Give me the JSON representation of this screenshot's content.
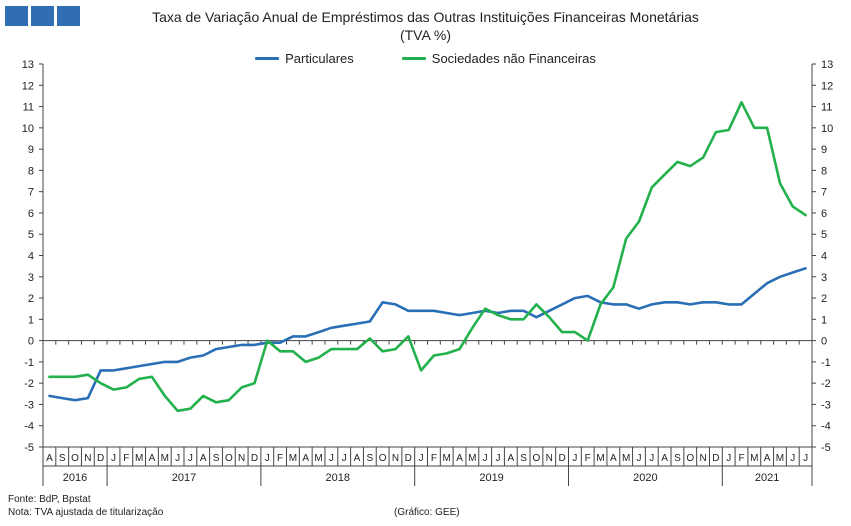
{
  "logo": {
    "icon": "institution-logo-icon",
    "color": "#2f6eb5"
  },
  "title": {
    "line1": "Taxa de Variação Anual de Empréstimos das Outras Instituições Financeiras Monetárias",
    "line2": "(TVA %)"
  },
  "legend": [
    {
      "label": "Particulares",
      "color": "#2a6fb5"
    },
    {
      "label": "Sociedades não Financeiras",
      "color": "#22b14c"
    }
  ],
  "footer": {
    "source": "Fonte: BdP, Bpstat",
    "note": "Nota: TVA ajustada de titularização",
    "credit": "(Gráfico: GEE)"
  },
  "chart_data": {
    "type": "line",
    "title": "Taxa de Variação Anual de Empréstimos das Outras Instituições Financeiras Monetárias (TVA %)",
    "ylim": [
      -5,
      13
    ],
    "yticks": [
      -5,
      -4,
      -3,
      -2,
      -1,
      0,
      1,
      2,
      3,
      4,
      5,
      6,
      7,
      8,
      9,
      10,
      11,
      12,
      13
    ],
    "x": [
      "A",
      "S",
      "O",
      "N",
      "D",
      "J",
      "F",
      "M",
      "A",
      "M",
      "J",
      "J",
      "A",
      "S",
      "O",
      "N",
      "D",
      "J",
      "F",
      "M",
      "A",
      "M",
      "J",
      "J",
      "A",
      "S",
      "O",
      "N",
      "D",
      "J",
      "F",
      "M",
      "A",
      "M",
      "J",
      "J",
      "A",
      "S",
      "O",
      "N",
      "D",
      "J",
      "F",
      "M",
      "A",
      "M",
      "J",
      "J",
      "A",
      "S",
      "O",
      "N",
      "D",
      "J",
      "F",
      "M",
      "A",
      "M",
      "J",
      "J"
    ],
    "years": [
      {
        "label": "2016",
        "start": 0,
        "count": 5
      },
      {
        "label": "2017",
        "start": 5,
        "count": 12
      },
      {
        "label": "2018",
        "start": 17,
        "count": 12
      },
      {
        "label": "2019",
        "start": 29,
        "count": 12
      },
      {
        "label": "2020",
        "start": 41,
        "count": 12
      },
      {
        "label": "2021",
        "start": 53,
        "count": 7
      }
    ],
    "series": [
      {
        "name": "Particulares",
        "color": "#2a6fb5",
        "values": [
          -2.6,
          -2.7,
          -2.8,
          -2.7,
          -1.4,
          -1.4,
          -1.3,
          -1.2,
          -1.1,
          -1.0,
          -1.0,
          -0.8,
          -0.7,
          -0.4,
          -0.3,
          -0.2,
          -0.2,
          -0.1,
          -0.1,
          0.2,
          0.2,
          0.4,
          0.6,
          0.7,
          0.8,
          0.9,
          1.8,
          1.7,
          1.4,
          1.4,
          1.4,
          1.3,
          1.2,
          1.3,
          1.4,
          1.3,
          1.4,
          1.4,
          1.1,
          1.4,
          1.7,
          2.0,
          2.1,
          1.8,
          1.7,
          1.7,
          1.5,
          1.7,
          1.8,
          1.8,
          1.7,
          1.8,
          1.8,
          1.7,
          1.7,
          2.2,
          2.7,
          3.0,
          3.2,
          3.4
        ]
      },
      {
        "name": "Sociedades não Financeiras",
        "color": "#22b14c",
        "values": [
          -1.7,
          -1.7,
          -1.7,
          -1.6,
          -2.0,
          -2.3,
          -2.2,
          -1.8,
          -1.7,
          -2.6,
          -3.3,
          -3.2,
          -2.6,
          -2.9,
          -2.8,
          -2.2,
          -2.0,
          0.0,
          -0.5,
          -0.5,
          -1.0,
          -0.8,
          -0.4,
          -0.4,
          -0.4,
          0.1,
          -0.5,
          -0.4,
          0.2,
          -1.4,
          -0.7,
          -0.6,
          -0.4,
          0.6,
          1.5,
          1.2,
          1.0,
          1.0,
          1.7,
          1.1,
          0.4,
          0.4,
          0.0,
          1.7,
          2.5,
          4.8,
          5.6,
          7.2,
          7.8,
          8.4,
          8.2,
          8.6,
          9.8,
          9.9,
          11.2,
          10.0,
          10.0,
          7.4,
          6.3,
          5.9
        ]
      }
    ]
  }
}
